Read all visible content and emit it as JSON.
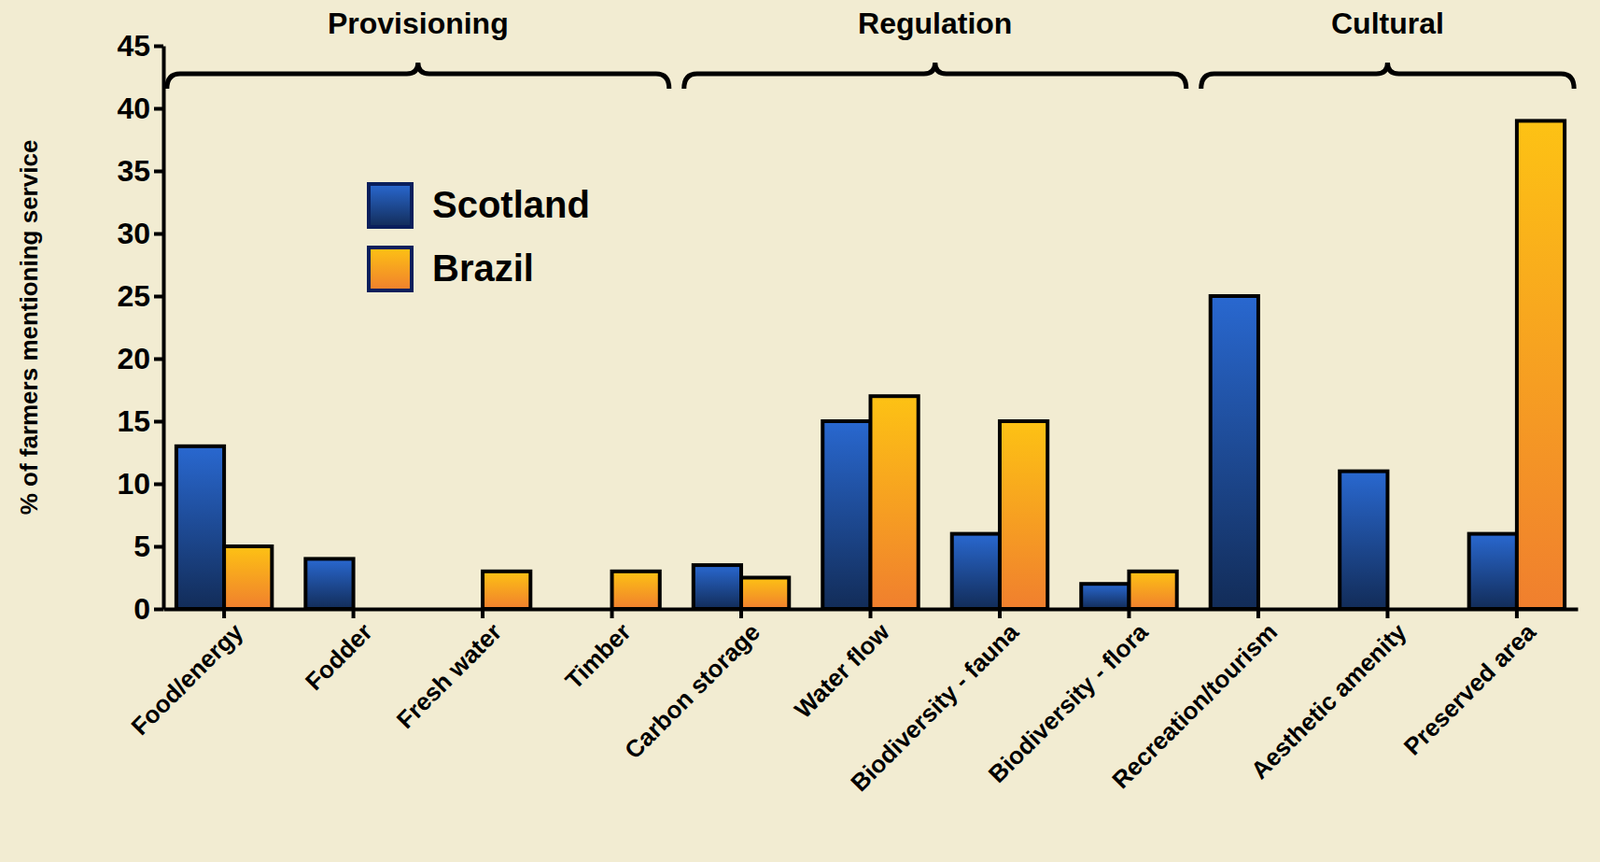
{
  "chart_data": {
    "type": "bar",
    "y_label": "% of farmers mentioning service",
    "categories": [
      "Food/energy",
      "Fodder",
      "Fresh water",
      "Timber",
      "Carbon storage",
      "Water flow",
      "Biodiversity - fauna",
      "Biodiversity - flora",
      "Recreation/tourism",
      "Aesthetic amenity",
      "Preserved area"
    ],
    "series": [
      {
        "name": "Scotland",
        "color": "#1f4e9c",
        "values": [
          13,
          4,
          0,
          0,
          3.5,
          15,
          6,
          2,
          25,
          11,
          6
        ]
      },
      {
        "name": "Brazil",
        "color": "#f9b233",
        "values": [
          5,
          0,
          3,
          3,
          2.5,
          17,
          15,
          3,
          0,
          0,
          39
        ]
      }
    ],
    "groups": [
      {
        "label": "Provisioning",
        "first": "Food/energy",
        "last": "Timber"
      },
      {
        "label": "Regulation",
        "first": "Carbon storage",
        "last": "Biodiversity - flora"
      },
      {
        "label": "Cultural",
        "first": "Recreation/tourism",
        "last": "Preserved area"
      }
    ],
    "ylim": [
      0,
      45
    ],
    "yticks": [
      0,
      5,
      10,
      15,
      20,
      25,
      30,
      35,
      40,
      45
    ],
    "legend": "upper left",
    "grid": false
  }
}
